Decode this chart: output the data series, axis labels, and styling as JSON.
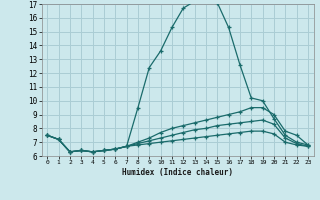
{
  "xlabel": "Humidex (Indice chaleur)",
  "xlim": [
    -0.5,
    23.5
  ],
  "ylim": [
    6,
    17
  ],
  "yticks": [
    6,
    7,
    8,
    9,
    10,
    11,
    12,
    13,
    14,
    15,
    16,
    17
  ],
  "xticks": [
    0,
    1,
    2,
    3,
    4,
    5,
    6,
    7,
    8,
    9,
    10,
    11,
    12,
    13,
    14,
    15,
    16,
    17,
    18,
    19,
    20,
    21,
    22,
    23
  ],
  "bg_color": "#cce8ec",
  "grid_color": "#aacdd4",
  "line_color": "#1a6b6b",
  "lines": [
    {
      "x": [
        0,
        1,
        2,
        3,
        4,
        5,
        6,
        7,
        8,
        9,
        10,
        11,
        12,
        13,
        14,
        15,
        16,
        17,
        18,
        19,
        20,
        21,
        22,
        23
      ],
      "y": [
        7.5,
        7.2,
        6.3,
        6.4,
        6.3,
        6.4,
        6.5,
        6.7,
        9.5,
        12.4,
        13.6,
        15.3,
        16.7,
        17.2,
        17.2,
        17.1,
        15.3,
        12.6,
        10.2,
        10.0,
        8.7,
        7.5,
        7.0,
        6.8
      ]
    },
    {
      "x": [
        0,
        1,
        2,
        3,
        4,
        5,
        6,
        7,
        8,
        9,
        10,
        11,
        12,
        13,
        14,
        15,
        16,
        17,
        18,
        19,
        20,
        21,
        22,
        23
      ],
      "y": [
        7.5,
        7.2,
        6.3,
        6.4,
        6.3,
        6.4,
        6.5,
        6.7,
        7.0,
        7.3,
        7.7,
        8.0,
        8.2,
        8.4,
        8.6,
        8.8,
        9.0,
        9.2,
        9.5,
        9.5,
        9.0,
        7.8,
        7.5,
        6.8
      ]
    },
    {
      "x": [
        0,
        1,
        2,
        3,
        4,
        5,
        6,
        7,
        8,
        9,
        10,
        11,
        12,
        13,
        14,
        15,
        16,
        17,
        18,
        19,
        20,
        21,
        22,
        23
      ],
      "y": [
        7.5,
        7.2,
        6.3,
        6.4,
        6.3,
        6.4,
        6.5,
        6.7,
        6.9,
        7.1,
        7.3,
        7.5,
        7.7,
        7.9,
        8.0,
        8.2,
        8.3,
        8.4,
        8.5,
        8.6,
        8.3,
        7.3,
        6.9,
        6.7
      ]
    },
    {
      "x": [
        0,
        1,
        2,
        3,
        4,
        5,
        6,
        7,
        8,
        9,
        10,
        11,
        12,
        13,
        14,
        15,
        16,
        17,
        18,
        19,
        20,
        21,
        22,
        23
      ],
      "y": [
        7.5,
        7.2,
        6.3,
        6.4,
        6.3,
        6.4,
        6.5,
        6.7,
        6.8,
        6.9,
        7.0,
        7.1,
        7.2,
        7.3,
        7.4,
        7.5,
        7.6,
        7.7,
        7.8,
        7.8,
        7.6,
        7.0,
        6.8,
        6.7
      ]
    }
  ]
}
